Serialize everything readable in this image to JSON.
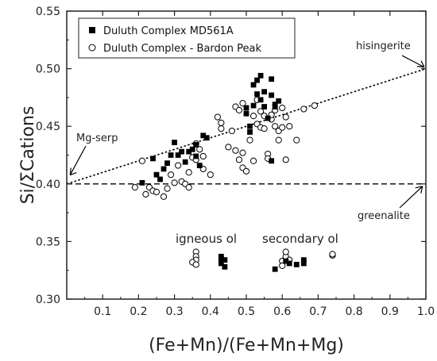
{
  "chart_data": {
    "type": "scatter",
    "xlabel": "(Fe+Mn)/(Fe+Mn+Mg)",
    "ylabel": "Si/ΣCations",
    "xlim": [
      0,
      1.0
    ],
    "ylim": [
      0.3,
      0.55
    ],
    "xticks": [
      "0.1",
      "0.2",
      "0.3",
      "0.4",
      "0.5",
      "0.6",
      "0.7",
      "0.8",
      "0.9",
      "1.0"
    ],
    "yticks": [
      "0.30",
      "0.35",
      "0.40",
      "0.45",
      "0.50",
      "0.55"
    ],
    "legend_position": "top-left",
    "series": [
      {
        "name": "Duluth Complex MD561A",
        "marker": "filled-square",
        "color": "#000000",
        "points": [
          [
            0.21,
            0.401
          ],
          [
            0.24,
            0.422
          ],
          [
            0.25,
            0.408
          ],
          [
            0.26,
            0.404
          ],
          [
            0.27,
            0.413
          ],
          [
            0.28,
            0.418
          ],
          [
            0.29,
            0.425
          ],
          [
            0.3,
            0.436
          ],
          [
            0.31,
            0.425
          ],
          [
            0.32,
            0.428
          ],
          [
            0.33,
            0.419
          ],
          [
            0.34,
            0.428
          ],
          [
            0.35,
            0.43
          ],
          [
            0.36,
            0.424
          ],
          [
            0.36,
            0.434
          ],
          [
            0.37,
            0.416
          ],
          [
            0.38,
            0.442
          ],
          [
            0.39,
            0.44
          ],
          [
            0.5,
            0.461
          ],
          [
            0.5,
            0.466
          ],
          [
            0.51,
            0.445
          ],
          [
            0.51,
            0.45
          ],
          [
            0.52,
            0.468
          ],
          [
            0.52,
            0.486
          ],
          [
            0.53,
            0.49
          ],
          [
            0.53,
            0.478
          ],
          [
            0.54,
            0.494
          ],
          [
            0.54,
            0.473
          ],
          [
            0.55,
            0.467
          ],
          [
            0.55,
            0.48
          ],
          [
            0.56,
            0.457
          ],
          [
            0.57,
            0.491
          ],
          [
            0.57,
            0.477
          ],
          [
            0.58,
            0.469
          ],
          [
            0.58,
            0.467
          ],
          [
            0.59,
            0.472
          ],
          [
            0.57,
            0.42
          ],
          [
            0.43,
            0.337
          ],
          [
            0.43,
            0.331
          ],
          [
            0.44,
            0.334
          ],
          [
            0.44,
            0.328
          ],
          [
            0.43,
            0.335
          ],
          [
            0.58,
            0.326
          ],
          [
            0.61,
            0.333
          ],
          [
            0.62,
            0.331
          ],
          [
            0.64,
            0.33
          ],
          [
            0.66,
            0.331
          ],
          [
            0.66,
            0.334
          ]
        ]
      },
      {
        "name": "Duluth Complex - Bardon Peak",
        "marker": "open-circle",
        "color": "#000000",
        "points": [
          [
            0.19,
            0.397
          ],
          [
            0.21,
            0.42
          ],
          [
            0.22,
            0.391
          ],
          [
            0.23,
            0.397
          ],
          [
            0.24,
            0.394
          ],
          [
            0.25,
            0.393
          ],
          [
            0.27,
            0.389
          ],
          [
            0.28,
            0.396
          ],
          [
            0.29,
            0.408
          ],
          [
            0.3,
            0.401
          ],
          [
            0.31,
            0.416
          ],
          [
            0.32,
            0.402
          ],
          [
            0.33,
            0.4
          ],
          [
            0.34,
            0.41
          ],
          [
            0.34,
            0.397
          ],
          [
            0.35,
            0.423
          ],
          [
            0.36,
            0.421
          ],
          [
            0.36,
            0.435
          ],
          [
            0.37,
            0.43
          ],
          [
            0.38,
            0.424
          ],
          [
            0.38,
            0.413
          ],
          [
            0.4,
            0.408
          ],
          [
            0.42,
            0.458
          ],
          [
            0.43,
            0.448
          ],
          [
            0.43,
            0.453
          ],
          [
            0.45,
            0.432
          ],
          [
            0.46,
            0.446
          ],
          [
            0.47,
            0.467
          ],
          [
            0.47,
            0.429
          ],
          [
            0.48,
            0.464
          ],
          [
            0.48,
            0.421
          ],
          [
            0.49,
            0.427
          ],
          [
            0.49,
            0.414
          ],
          [
            0.49,
            0.47
          ],
          [
            0.5,
            0.411
          ],
          [
            0.51,
            0.438
          ],
          [
            0.52,
            0.42
          ],
          [
            0.52,
            0.459
          ],
          [
            0.53,
            0.452
          ],
          [
            0.53,
            0.473
          ],
          [
            0.54,
            0.449
          ],
          [
            0.54,
            0.463
          ],
          [
            0.55,
            0.448
          ],
          [
            0.55,
            0.459
          ],
          [
            0.56,
            0.426
          ],
          [
            0.56,
            0.422
          ],
          [
            0.57,
            0.456
          ],
          [
            0.57,
            0.46
          ],
          [
            0.58,
            0.464
          ],
          [
            0.58,
            0.45
          ],
          [
            0.59,
            0.446
          ],
          [
            0.59,
            0.438
          ],
          [
            0.6,
            0.449
          ],
          [
            0.6,
            0.466
          ],
          [
            0.61,
            0.458
          ],
          [
            0.61,
            0.421
          ],
          [
            0.62,
            0.45
          ],
          [
            0.64,
            0.438
          ],
          [
            0.66,
            0.465
          ],
          [
            0.69,
            0.468
          ],
          [
            0.36,
            0.341
          ],
          [
            0.36,
            0.337
          ],
          [
            0.36,
            0.334
          ],
          [
            0.35,
            0.332
          ],
          [
            0.36,
            0.33
          ],
          [
            0.6,
            0.333
          ],
          [
            0.6,
            0.329
          ],
          [
            0.61,
            0.337
          ],
          [
            0.61,
            0.341
          ],
          [
            0.62,
            0.334
          ],
          [
            0.74,
            0.338
          ],
          [
            0.74,
            0.339
          ]
        ]
      }
    ],
    "lines": [
      {
        "name": "hisingerite–Mg-serp trend",
        "style": "dotted",
        "from": [
          0.0,
          0.4
        ],
        "to": [
          1.0,
          0.5
        ]
      },
      {
        "name": "greenalite",
        "style": "dashed",
        "from": [
          0.0,
          0.4
        ],
        "to": [
          1.0,
          0.4
        ]
      }
    ],
    "annotations": {
      "hisingerite": "hisingerite",
      "mg_serp": "Mg-serp",
      "greenalite": "greenalite",
      "igneous_ol": "igneous ol",
      "secondary_ol": "secondary ol"
    }
  }
}
